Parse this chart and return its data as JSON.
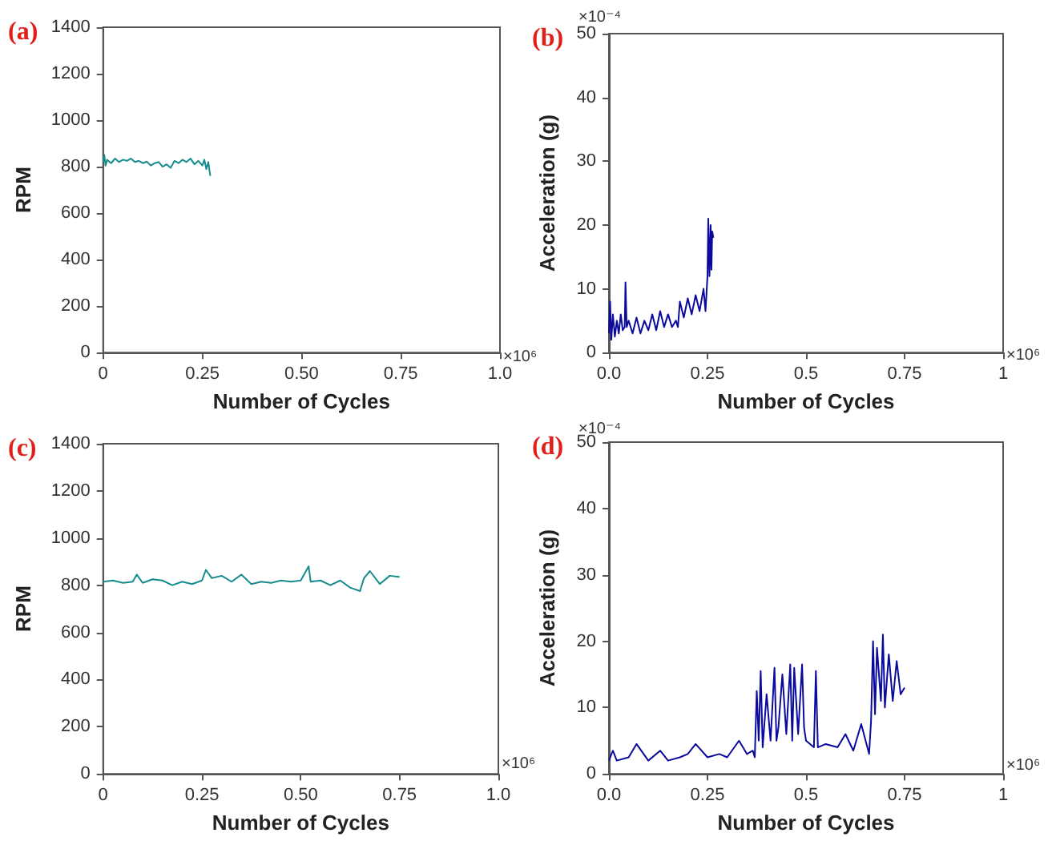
{
  "chart_data": [
    {
      "type": "line",
      "title": "(a)",
      "xlabel": "Number of Cycles",
      "ylabel": "RPM",
      "annotations": [
        "×10⁶"
      ],
      "xlim": [
        0,
        1
      ],
      "xticks": [
        0,
        0.25,
        {
          "value": 0.5,
          "label": "0.50"
        },
        0.75,
        {
          "value": 1,
          "label": "1.0"
        }
      ],
      "ylim": [
        0,
        1400
      ],
      "yticks": [
        0,
        200,
        400,
        600,
        800,
        1000,
        1200,
        1400
      ],
      "grid": false,
      "series": [
        {
          "color": "#168c8c",
          "x": [
            0,
            0.003,
            0.006,
            0.01,
            0.02,
            0.03,
            0.04,
            0.05,
            0.06,
            0.07,
            0.08,
            0.09,
            0.1,
            0.11,
            0.12,
            0.13,
            0.14,
            0.15,
            0.16,
            0.17,
            0.18,
            0.19,
            0.2,
            0.21,
            0.22,
            0.23,
            0.24,
            0.25,
            0.255,
            0.26,
            0.265,
            0.27
          ],
          "values": [
            820,
            850,
            805,
            830,
            815,
            835,
            820,
            830,
            825,
            835,
            820,
            825,
            815,
            822,
            805,
            815,
            820,
            800,
            810,
            795,
            825,
            815,
            830,
            820,
            835,
            810,
            825,
            805,
            830,
            790,
            820,
            760
          ]
        }
      ]
    },
    {
      "type": "line",
      "title": "(b)",
      "xlabel": "Number of Cycles",
      "ylabel": "Acceleration (g)",
      "annotations": [
        "×10⁻⁴",
        "×10⁶"
      ],
      "xlim": [
        0,
        1
      ],
      "xticks": [
        {
          "value": 0,
          "label": "0.0"
        },
        0.25,
        0.5,
        0.75,
        1
      ],
      "ylim": [
        0,
        50
      ],
      "yticks": [
        0,
        10,
        20,
        30,
        40,
        50
      ],
      "grid": false,
      "series": [
        {
          "color": "#0a0a9c",
          "x": [
            0,
            0.003,
            0.006,
            0.01,
            0.015,
            0.02,
            0.025,
            0.03,
            0.035,
            0.04,
            0.042,
            0.045,
            0.05,
            0.06,
            0.07,
            0.08,
            0.09,
            0.1,
            0.11,
            0.12,
            0.13,
            0.14,
            0.15,
            0.16,
            0.17,
            0.175,
            0.18,
            0.19,
            0.2,
            0.21,
            0.22,
            0.23,
            0.24,
            0.245,
            0.25,
            0.252,
            0.255,
            0.258,
            0.26,
            0.262,
            0.265
          ],
          "values": [
            3,
            8,
            2,
            6,
            2.5,
            5,
            3,
            6,
            3.5,
            4,
            11,
            4,
            5,
            3,
            5.5,
            3,
            5,
            3.5,
            6,
            3.5,
            6.5,
            4,
            6,
            4,
            5,
            4,
            8,
            5.5,
            8.5,
            6,
            9,
            6.5,
            10,
            6.5,
            12,
            21,
            12,
            20,
            13,
            19,
            18
          ]
        }
      ]
    },
    {
      "type": "line",
      "title": "(c)",
      "xlabel": "Number of Cycles",
      "ylabel": "RPM",
      "annotations": [
        "×10⁶"
      ],
      "xlim": [
        0,
        1
      ],
      "xticks": [
        0,
        0.25,
        {
          "value": 0.5,
          "label": "0.50"
        },
        0.75,
        {
          "value": 1,
          "label": "1.0"
        }
      ],
      "ylim": [
        0,
        1400
      ],
      "yticks": [
        0,
        200,
        400,
        600,
        800,
        1000,
        1200,
        1400
      ],
      "grid": false,
      "series": [
        {
          "color": "#168c8c",
          "x": [
            0,
            0.025,
            0.05,
            0.075,
            0.085,
            0.1,
            0.125,
            0.15,
            0.175,
            0.2,
            0.225,
            0.25,
            0.26,
            0.275,
            0.3,
            0.325,
            0.35,
            0.375,
            0.4,
            0.425,
            0.45,
            0.475,
            0.5,
            0.52,
            0.525,
            0.55,
            0.575,
            0.6,
            0.625,
            0.65,
            0.66,
            0.675,
            0.7,
            0.725,
            0.75
          ],
          "values": [
            815,
            820,
            810,
            815,
            845,
            810,
            825,
            820,
            800,
            815,
            805,
            820,
            865,
            830,
            840,
            815,
            845,
            805,
            815,
            810,
            820,
            815,
            820,
            880,
            815,
            820,
            800,
            820,
            790,
            775,
            830,
            860,
            805,
            840,
            835
          ]
        }
      ]
    },
    {
      "type": "line",
      "title": "(d)",
      "xlabel": "Number of Cycles",
      "ylabel": "Acceleration (g)",
      "annotations": [
        "×10⁻⁴",
        "×10⁶"
      ],
      "xlim": [
        0,
        1
      ],
      "xticks": [
        {
          "value": 0,
          "label": "0.0"
        },
        0.25,
        0.5,
        0.75,
        1
      ],
      "ylim": [
        0,
        50
      ],
      "yticks": [
        0,
        10,
        20,
        30,
        40,
        50
      ],
      "grid": false,
      "series": [
        {
          "color": "#0a0a9c",
          "x": [
            0,
            0.01,
            0.02,
            0.05,
            0.07,
            0.1,
            0.13,
            0.15,
            0.18,
            0.2,
            0.22,
            0.25,
            0.28,
            0.3,
            0.33,
            0.35,
            0.365,
            0.37,
            0.375,
            0.38,
            0.385,
            0.39,
            0.4,
            0.41,
            0.42,
            0.425,
            0.43,
            0.44,
            0.45,
            0.46,
            0.465,
            0.47,
            0.48,
            0.49,
            0.495,
            0.5,
            0.52,
            0.525,
            0.53,
            0.55,
            0.58,
            0.6,
            0.62,
            0.64,
            0.66,
            0.665,
            0.67,
            0.675,
            0.68,
            0.69,
            0.695,
            0.7,
            0.71,
            0.72,
            0.73,
            0.74,
            0.75
          ],
          "values": [
            2,
            3.5,
            2,
            2.5,
            4.5,
            2,
            3.5,
            2,
            2.5,
            3,
            4.5,
            2.5,
            3,
            2.5,
            5,
            3,
            3.5,
            2.5,
            12.5,
            5,
            15.5,
            4,
            12,
            5,
            16,
            5,
            7,
            15,
            6,
            16.5,
            5,
            16,
            6,
            16.5,
            7,
            5,
            4,
            15.5,
            4,
            4.5,
            4,
            6,
            3.5,
            7.5,
            3,
            8,
            20,
            9,
            19,
            11,
            21,
            10,
            18,
            11,
            17,
            12,
            13
          ]
        }
      ]
    }
  ]
}
